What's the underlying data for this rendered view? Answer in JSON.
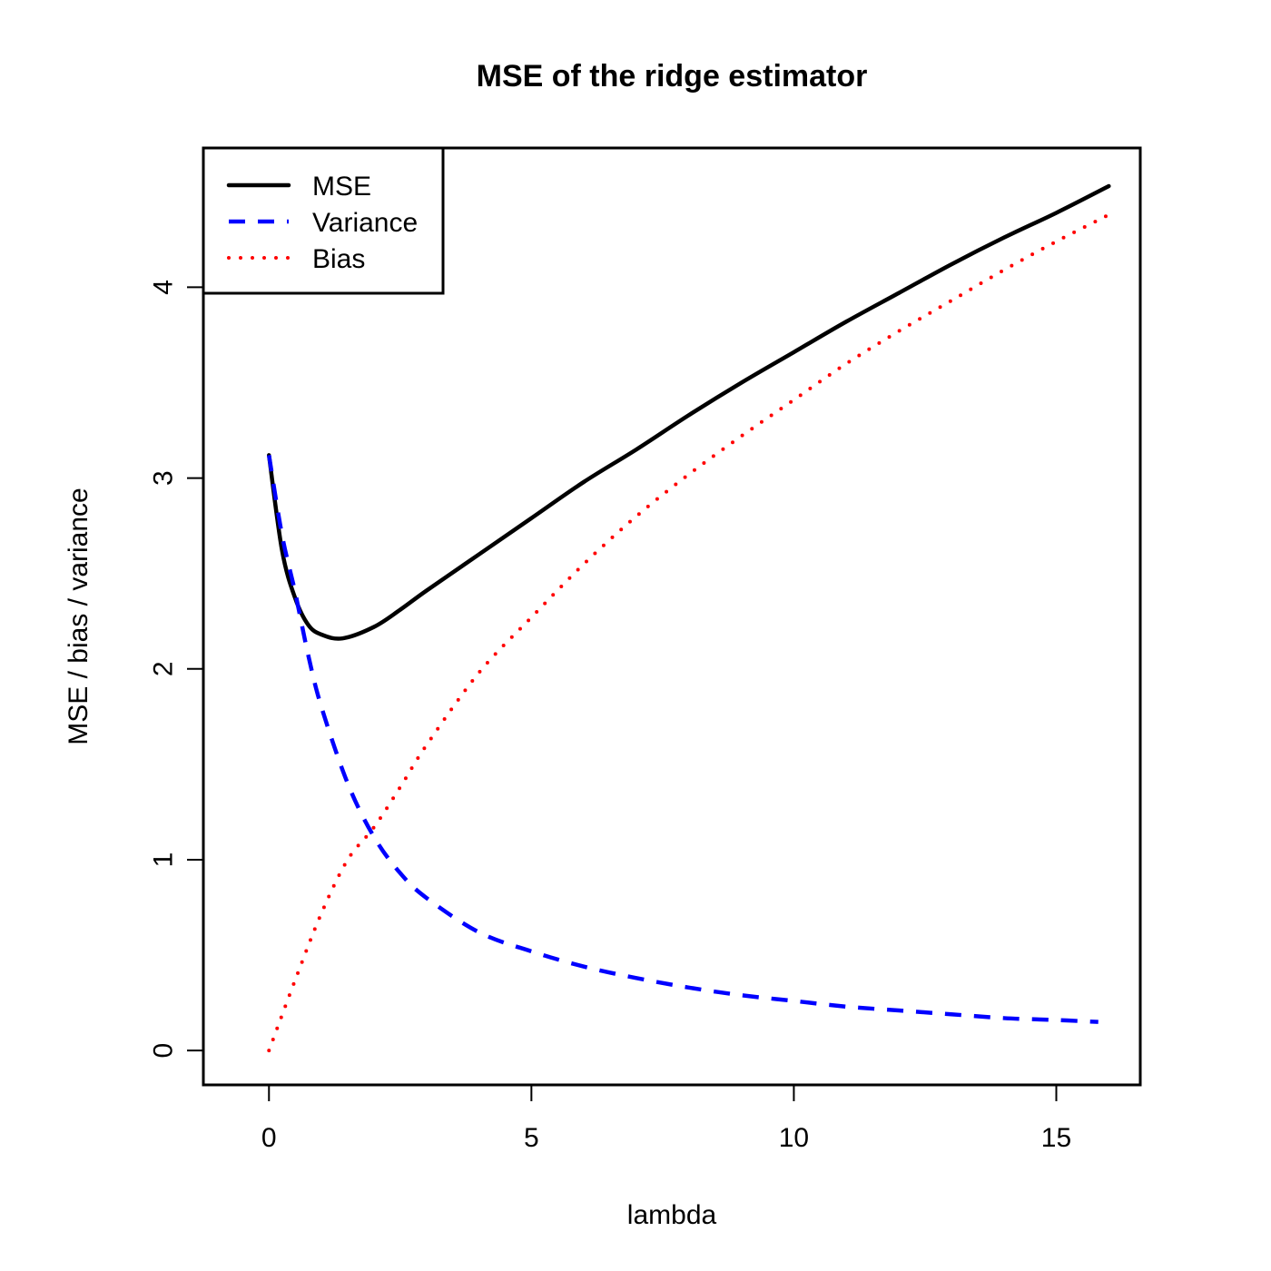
{
  "chart_data": {
    "type": "line",
    "title": "MSE of the ridge estimator",
    "xlabel": "lambda",
    "ylabel": "MSE / bias / variance",
    "xlim": [
      -1.25,
      16.6
    ],
    "ylim": [
      -0.18,
      4.73
    ],
    "xticks": [
      "0",
      "5",
      "10",
      "15"
    ],
    "yticks": [
      "0",
      "1",
      "2",
      "3",
      "4"
    ],
    "grid": false,
    "legend_position": "top-left",
    "series": [
      {
        "name": "MSE",
        "color": "#000000",
        "style": "solid",
        "x": [
          0,
          0.25,
          0.5,
          0.75,
          1.0,
          1.4,
          2.0,
          2.5,
          3,
          4,
          5,
          6,
          7,
          8,
          9,
          10,
          11,
          12,
          13,
          14,
          15,
          16
        ],
        "y": [
          3.12,
          2.62,
          2.37,
          2.23,
          2.18,
          2.16,
          2.22,
          2.31,
          2.41,
          2.6,
          2.79,
          2.98,
          3.15,
          3.33,
          3.5,
          3.66,
          3.82,
          3.97,
          4.12,
          4.26,
          4.39,
          4.53
        ]
      },
      {
        "name": "Variance",
        "color": "#0000ff",
        "style": "dashed",
        "x": [
          0,
          0.25,
          0.5,
          0.75,
          1.0,
          1.5,
          2.0,
          2.5,
          3,
          4,
          5,
          6,
          7,
          8,
          9,
          10,
          11,
          12,
          13,
          14,
          15,
          15.8
        ],
        "y": [
          3.12,
          2.7,
          2.4,
          2.07,
          1.8,
          1.4,
          1.12,
          0.93,
          0.8,
          0.62,
          0.52,
          0.44,
          0.38,
          0.33,
          0.29,
          0.26,
          0.23,
          0.21,
          0.19,
          0.17,
          0.16,
          0.15
        ]
      },
      {
        "name": "Bias",
        "color": "#ff0000",
        "style": "dotted",
        "x": [
          0,
          0.5,
          1.0,
          1.5,
          2.0,
          2.5,
          3,
          4,
          5,
          6,
          7,
          8,
          9,
          10,
          11,
          12,
          13,
          14,
          15,
          16
        ],
        "y": [
          0,
          0.37,
          0.72,
          1.0,
          1.17,
          1.38,
          1.6,
          1.98,
          2.27,
          2.55,
          2.8,
          3.02,
          3.22,
          3.41,
          3.6,
          3.77,
          3.93,
          4.09,
          4.24,
          4.38
        ]
      }
    ]
  }
}
